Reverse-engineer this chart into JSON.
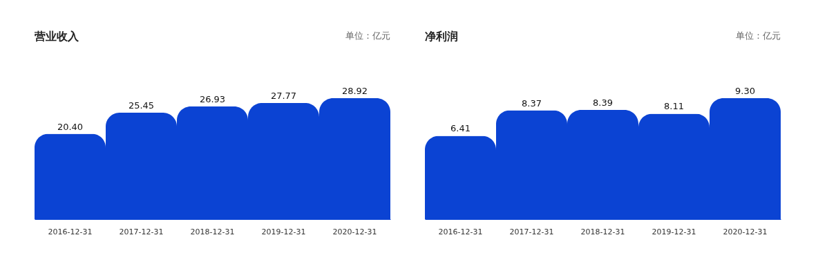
{
  "chart_data": [
    {
      "type": "bar",
      "title": "营业收入",
      "annotations": [
        "单位：亿元"
      ],
      "categories": [
        "2016-12-31",
        "2017-12-31",
        "2018-12-31",
        "2019-12-31",
        "2020-12-31"
      ],
      "values": [
        20.4,
        25.45,
        26.93,
        27.77,
        28.92
      ],
      "value_labels": [
        "20.40",
        "25.45",
        "26.93",
        "27.77",
        "28.92"
      ],
      "color": "#0b43d3"
    },
    {
      "type": "bar",
      "title": "净利润",
      "annotations": [
        "单位：亿元"
      ],
      "categories": [
        "2016-12-31",
        "2017-12-31",
        "2018-12-31",
        "2019-12-31",
        "2020-12-31"
      ],
      "values": [
        6.41,
        8.37,
        8.39,
        8.11,
        9.3
      ],
      "value_labels": [
        "6.41",
        "8.37",
        "8.39",
        "8.11",
        "9.30"
      ],
      "color": "#0b43d3"
    }
  ]
}
